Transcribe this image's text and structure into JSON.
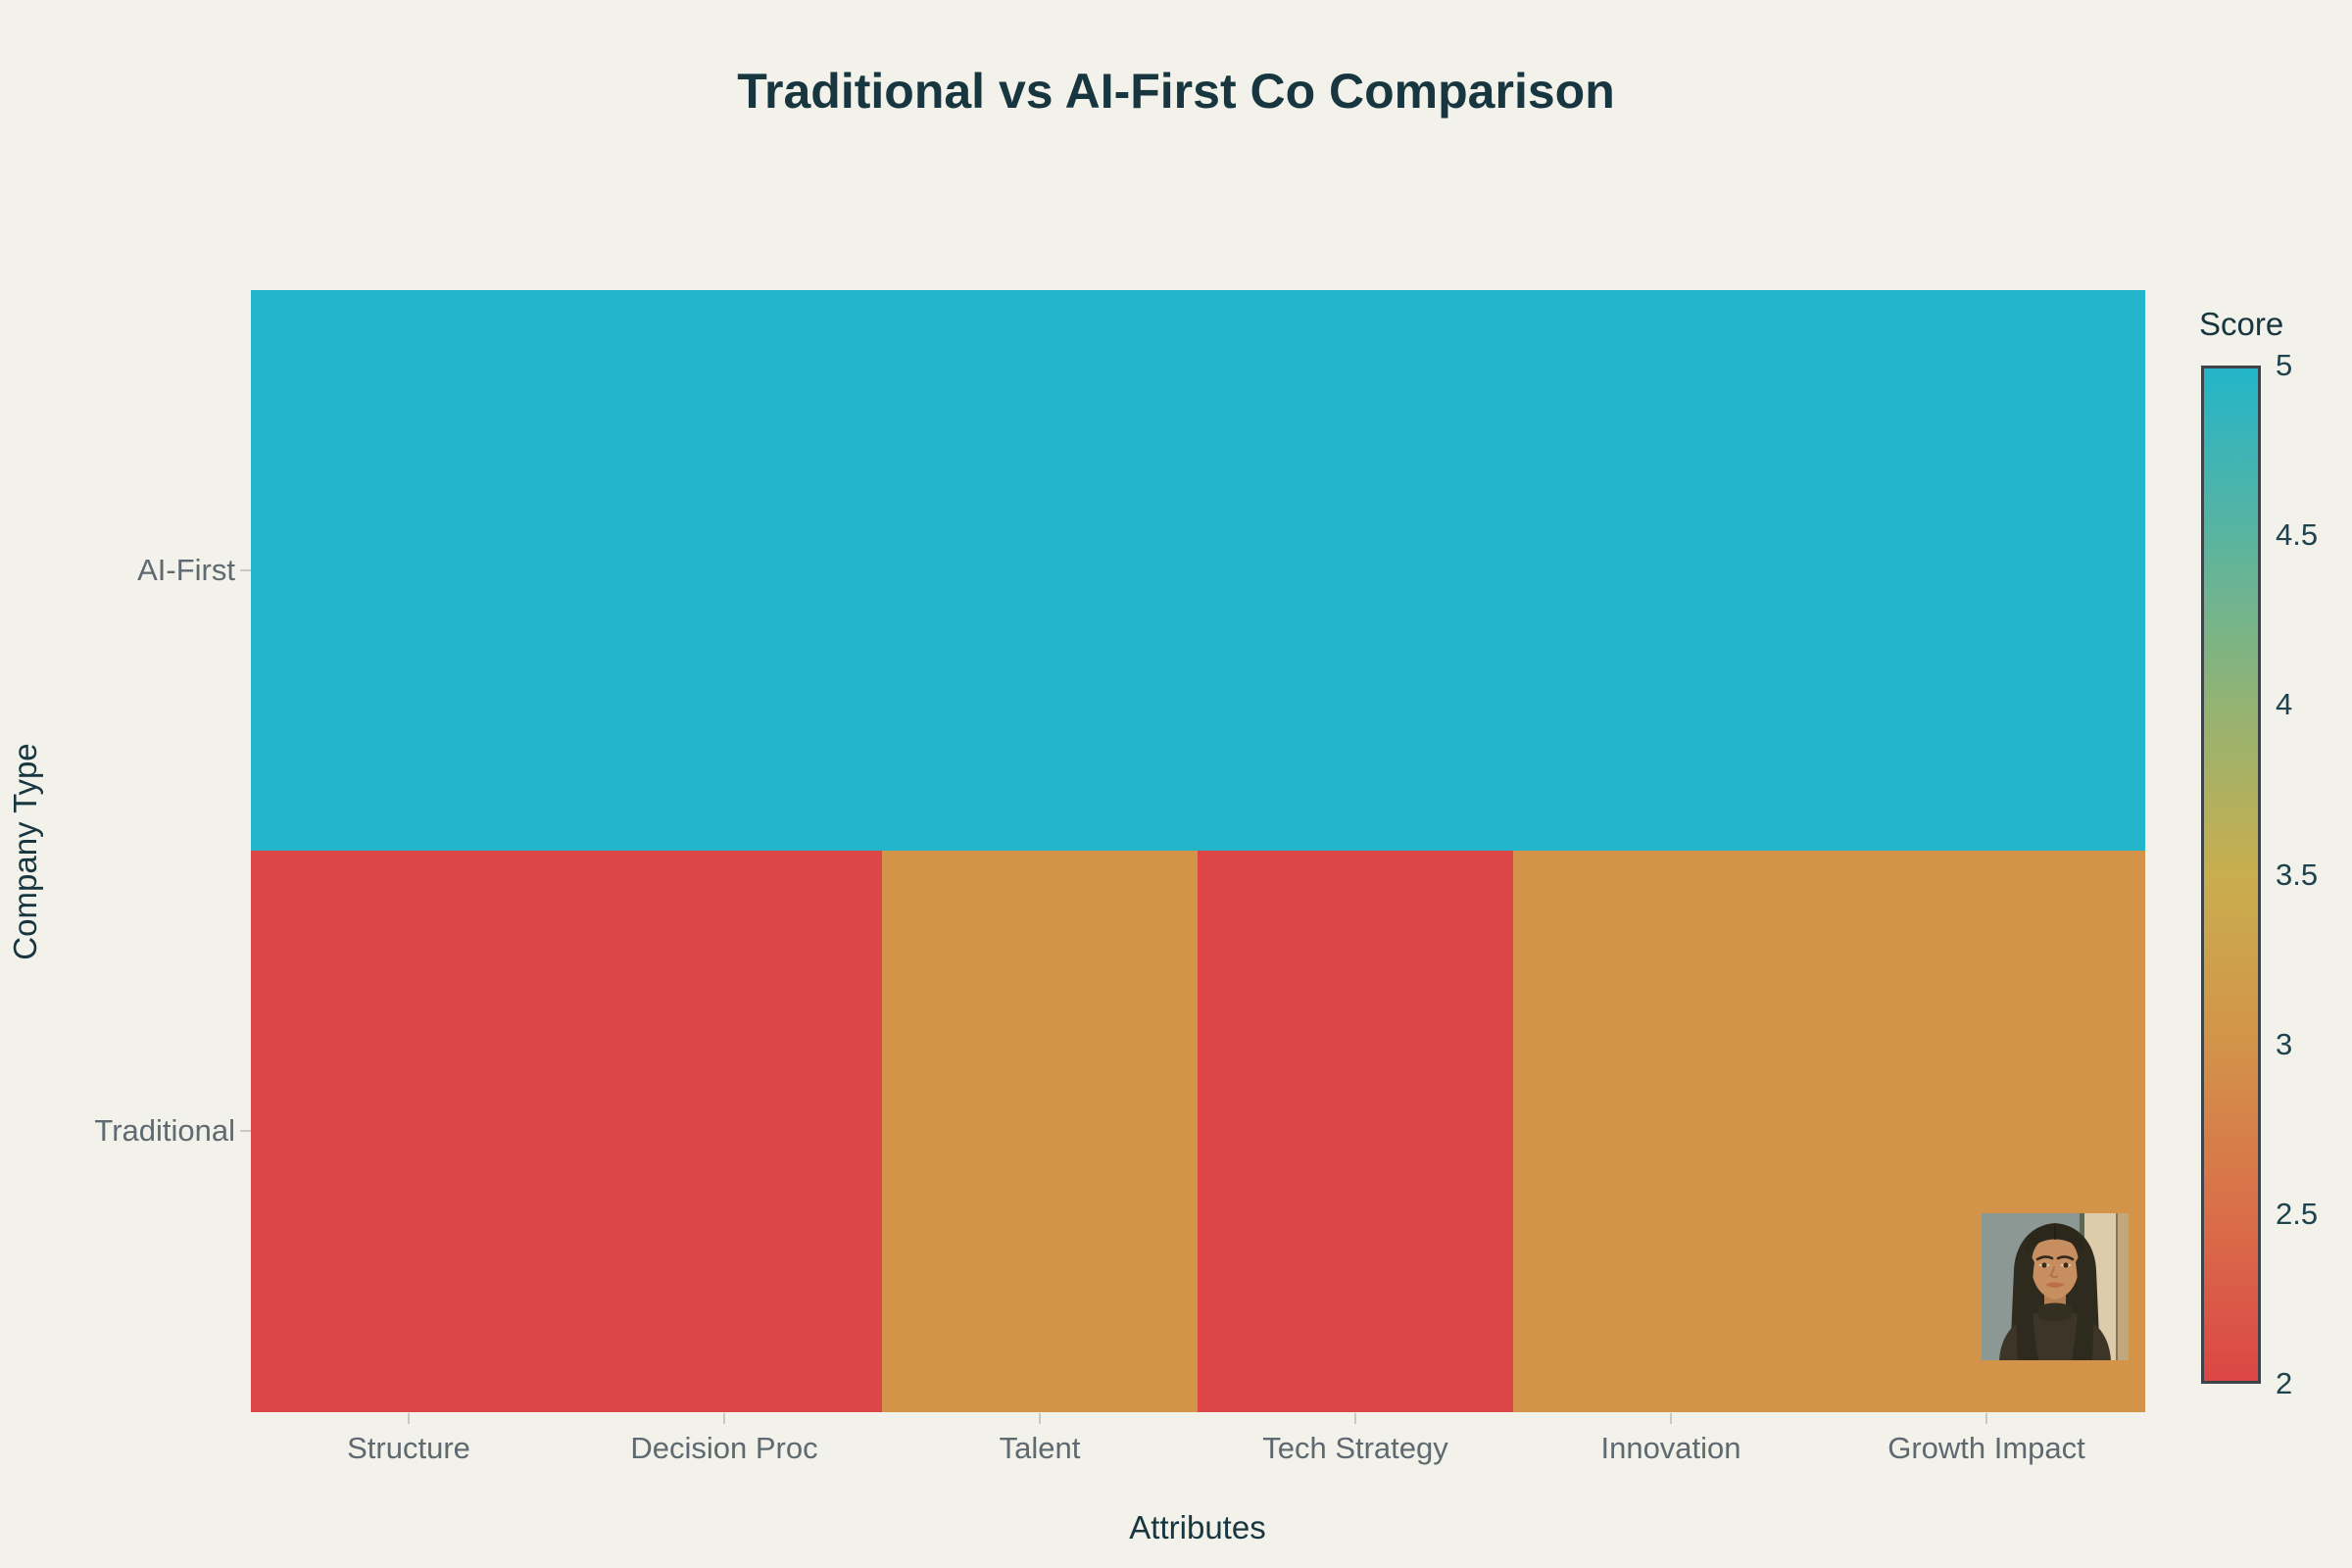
{
  "chart": {
    "title": "Traditional vs AI-First Co Comparison",
    "x_axis_title": "Attributes",
    "y_axis_title": "Company Type",
    "colorbar_title": "Score"
  },
  "chart_data": {
    "type": "heatmap",
    "title": "Traditional vs AI-First Co Comparison",
    "xlabel": "Attributes",
    "ylabel": "Company Type",
    "categories": [
      "Structure",
      "Decision Proc",
      "Talent",
      "Tech Strategy",
      "Innovation",
      "Growth Impact"
    ],
    "rows": [
      "AI-First",
      "Traditional"
    ],
    "series": [
      {
        "name": "AI-First",
        "values": [
          5,
          5,
          5,
          5,
          5,
          5
        ]
      },
      {
        "name": "Traditional",
        "values": [
          2,
          2,
          3,
          2,
          3,
          3
        ]
      }
    ],
    "zmin": 2,
    "zmax": 5,
    "colorbar": {
      "title": "Score",
      "ticks": [
        5,
        4.5,
        4,
        3.5,
        3,
        2.5,
        2
      ]
    },
    "colorscale": [
      {
        "value": 2,
        "color": "#dc4646"
      },
      {
        "value": 2.5,
        "color": "#d96f49"
      },
      {
        "value": 3,
        "color": "#d39349"
      },
      {
        "value": 3.5,
        "color": "#c9ae4e"
      },
      {
        "value": 4,
        "color": "#93b373"
      },
      {
        "value": 4.5,
        "color": "#5ab4a0"
      },
      {
        "value": 5,
        "color": "#23b5c9"
      }
    ],
    "grid": false,
    "legend_position": "right-colorbar"
  },
  "colors": {
    "background": "#f2f1ea",
    "heading_text": "#17363f",
    "tick_label_text": "#5f6a70",
    "colorbar_label_text": "#1f434e",
    "tick_mark": "#c9c9c1",
    "colorbar_border": "#3e4347"
  },
  "profile_image": {
    "description": "illustrated portrait of a woman with long dark hair"
  }
}
